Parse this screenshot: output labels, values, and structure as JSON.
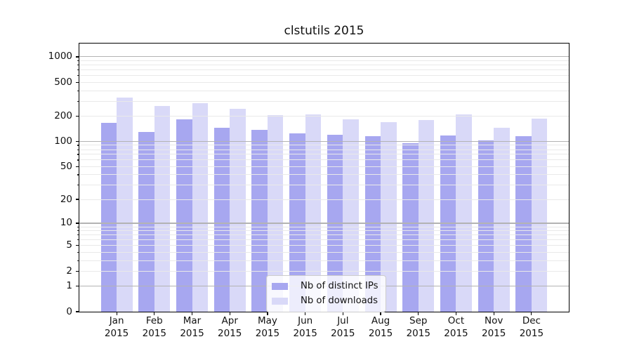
{
  "figure": {
    "title": "clstutils 2015"
  },
  "chart_data": {
    "type": "bar",
    "title": "clstutils 2015",
    "categories": [
      "Jan 2015",
      "Feb 2015",
      "Mar 2015",
      "Apr 2015",
      "May 2015",
      "Jun 2015",
      "Jul 2015",
      "Aug 2015",
      "Sep 2015",
      "Oct 2015",
      "Nov 2015",
      "Dec 2015"
    ],
    "series": [
      {
        "name": "Nb of distinct IPs",
        "color": "#a7a7f0",
        "values": [
          166,
          130,
          184,
          144,
          137,
          125,
          120,
          116,
          96,
          117,
          103,
          116
        ]
      },
      {
        "name": "Nb of downloads",
        "color": "#d9d9f8",
        "values": [
          328,
          263,
          285,
          242,
          206,
          209,
          182,
          171,
          179,
          210,
          146,
          186
        ]
      }
    ],
    "xlabel": "",
    "ylabel": "",
    "yscale": "log1p",
    "ylim": [
      0,
      1435
    ],
    "yticks": [
      0,
      1,
      2,
      5,
      10,
      20,
      50,
      100,
      200,
      500,
      1000
    ],
    "grid": "horizontal, major and minor, drawn over bars",
    "legend_position": "lower center inside plot"
  },
  "style": {
    "grid_major_color": "#b3b3b3",
    "grid_minor_color": "#e9e9e9",
    "spine_color": "#000000",
    "text_color": "#111111",
    "legend_bg": "rgba(255,255,255,0.8)",
    "legend_border": "#cccccc"
  }
}
